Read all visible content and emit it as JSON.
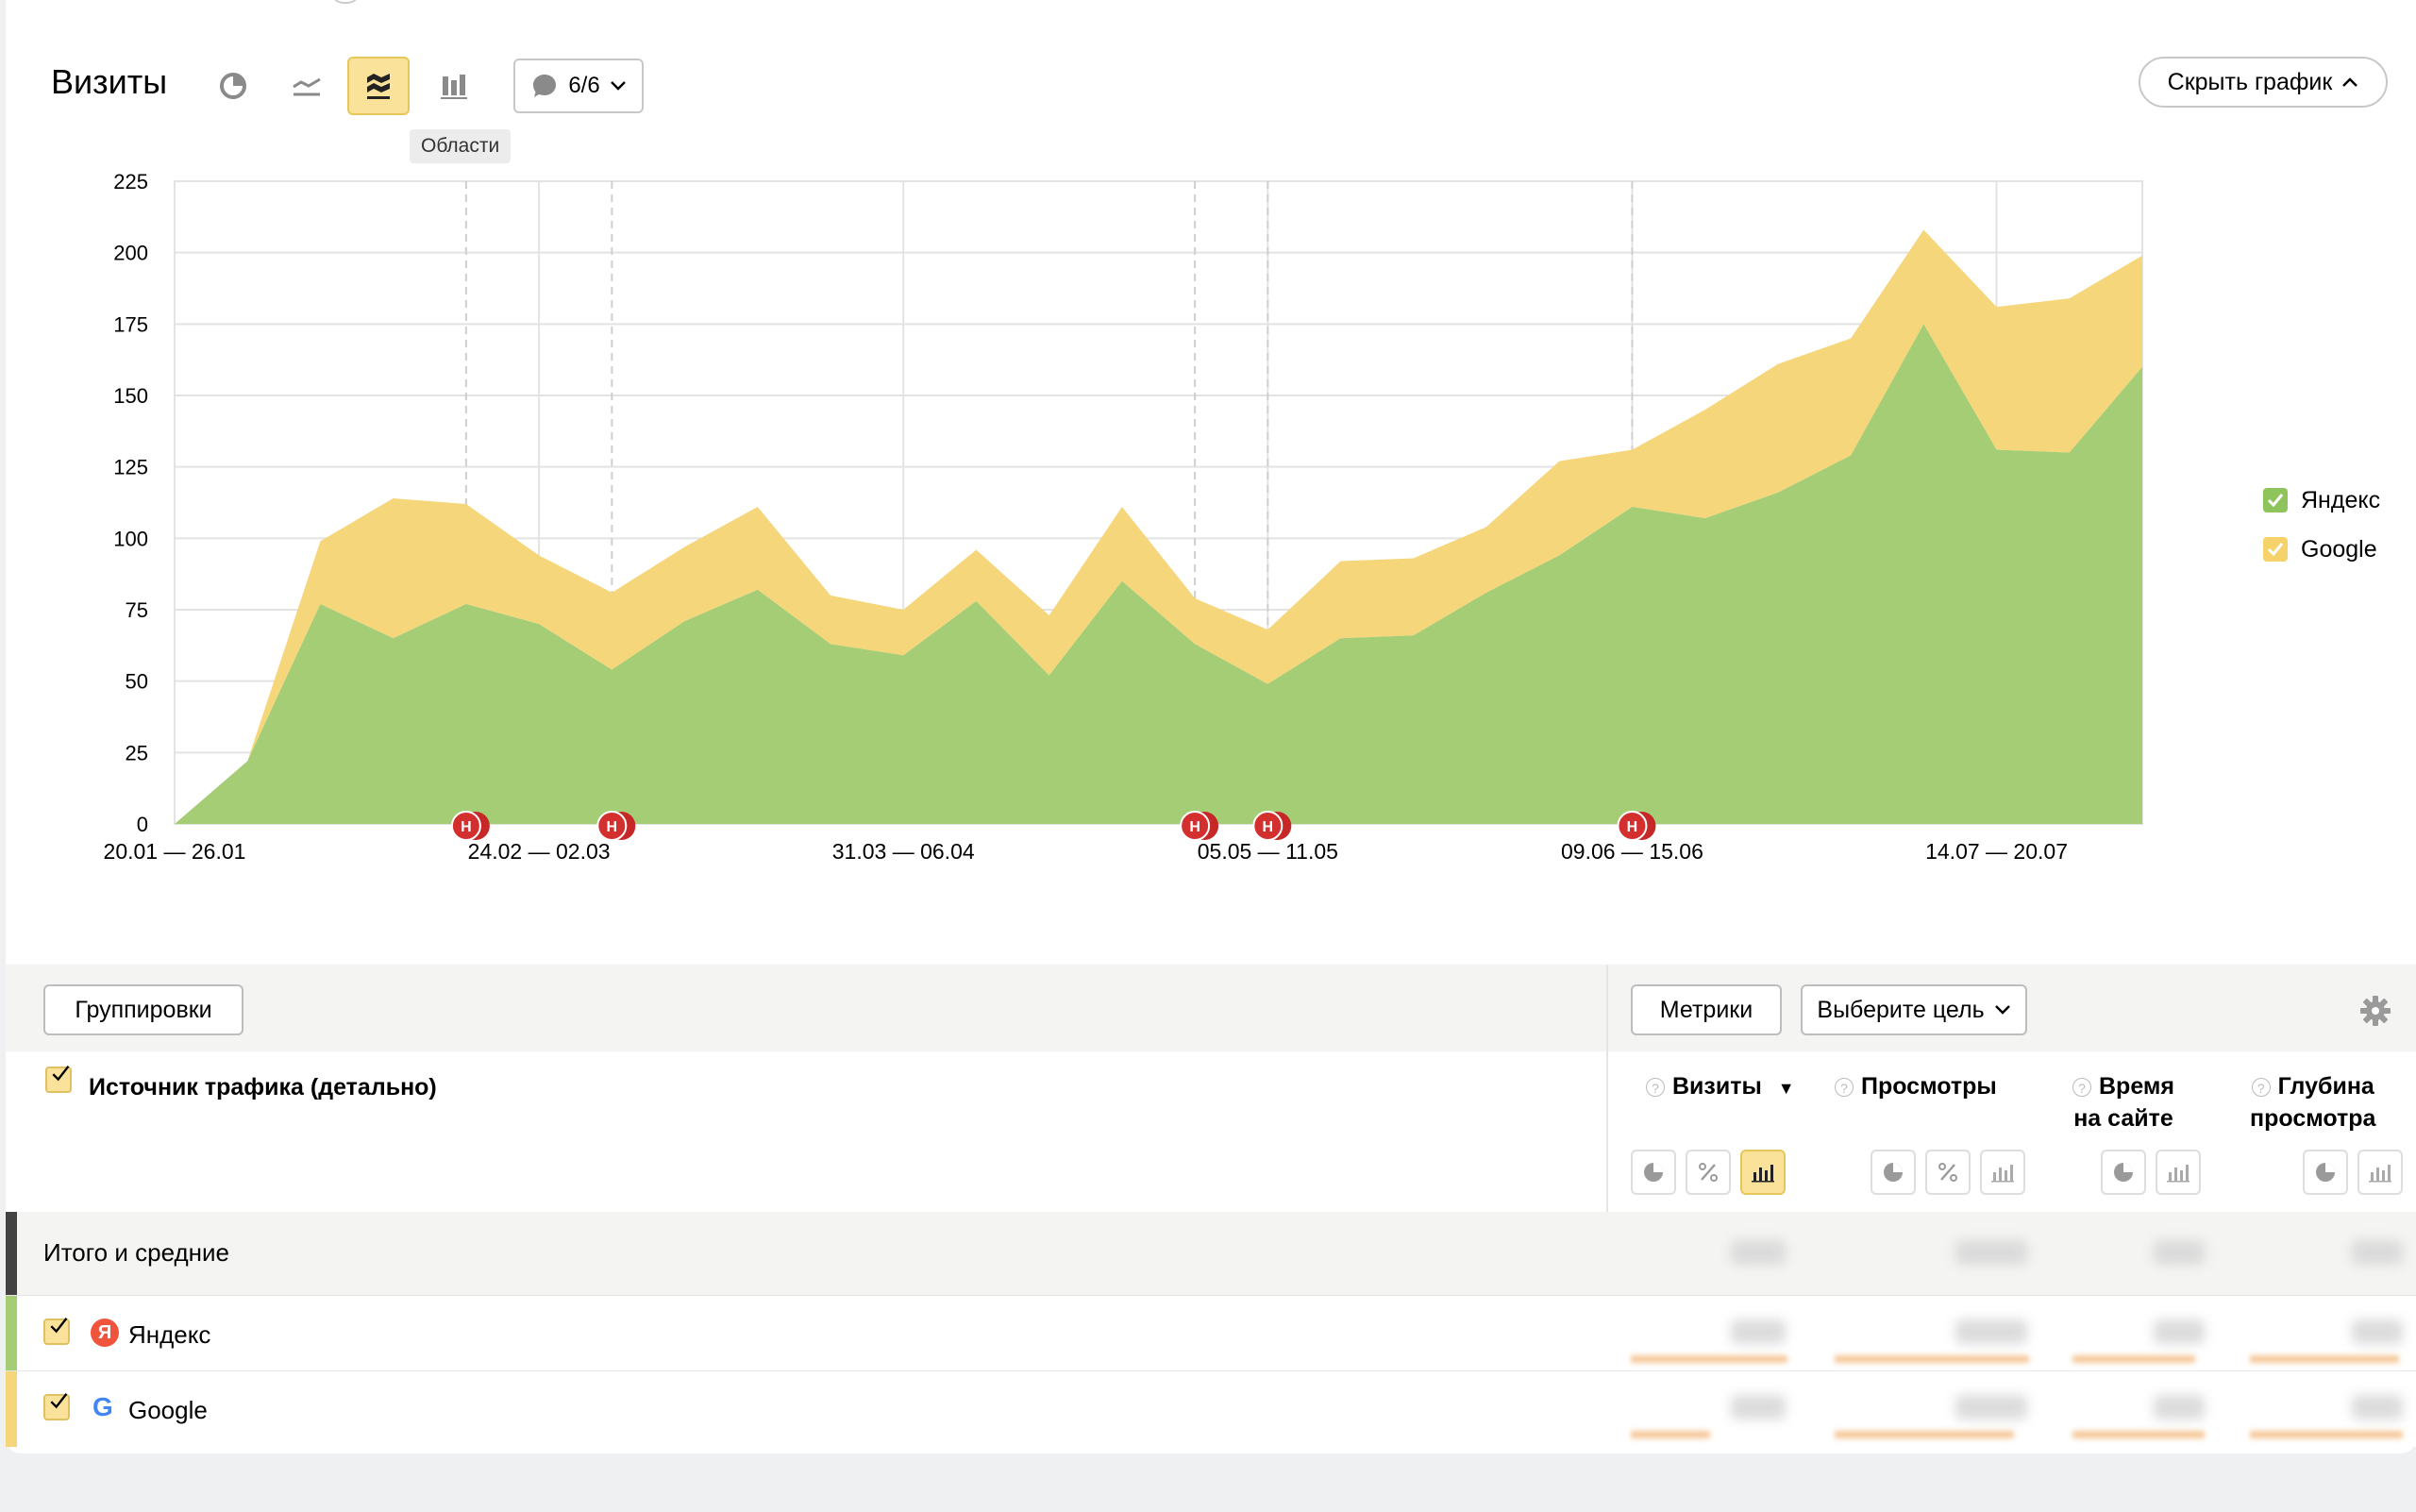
{
  "header": {
    "title": "Визиты",
    "comments_label": "6/6",
    "tooltip": "Области",
    "hide_chart_label": "Скрыть график"
  },
  "legend": [
    {
      "name": "Яндекс",
      "color": "#8fc45c"
    },
    {
      "name": "Google",
      "color": "#f5d36a"
    }
  ],
  "chart_data": {
    "type": "area",
    "stacked": true,
    "ylim": [
      0,
      225
    ],
    "yticks": [
      0,
      25,
      50,
      75,
      100,
      125,
      150,
      175,
      200,
      225
    ],
    "x_labels": [
      {
        "index": 0,
        "label": "20.01 — 26.01"
      },
      {
        "index": 5,
        "label": "24.02 — 02.03"
      },
      {
        "index": 10,
        "label": "31.03 — 06.04"
      },
      {
        "index": 15,
        "label": "05.05 — 11.05"
      },
      {
        "index": 20,
        "label": "09.06 — 15.06"
      },
      {
        "index": 25,
        "label": "14.07 — 20.07"
      }
    ],
    "annotation_points": [
      4,
      6,
      14,
      15,
      20
    ],
    "annotation_label": "Н",
    "series": [
      {
        "name": "Яндекс",
        "color": "#a5cd76",
        "values": [
          0,
          22,
          77,
          65,
          77,
          70,
          54,
          71,
          82,
          63,
          59,
          78,
          52,
          85,
          63,
          49,
          65,
          66,
          81,
          94,
          111,
          107,
          116,
          129,
          175,
          131,
          130,
          160
        ]
      },
      {
        "name": "Google",
        "color": "#f5d67b",
        "values": [
          0,
          0,
          22,
          49,
          35,
          24,
          27,
          26,
          29,
          17,
          16,
          18,
          21,
          26,
          16,
          19,
          27,
          27,
          23,
          33,
          20,
          38,
          45,
          41,
          33,
          50,
          54,
          39
        ]
      }
    ]
  },
  "table_toolbar": {
    "groupings": "Группировки",
    "metrics": "Метрики",
    "goal": "Выберите цель"
  },
  "columns": {
    "dimension": "Источник трафика (детально)",
    "visits": "Визиты",
    "sort_marker": "▼",
    "views": "Просмотры",
    "time_line1": "Время",
    "time_line2": "на сайте",
    "depth_line1": "Глубина",
    "depth_line2": "просмотра"
  },
  "rows": {
    "total": "Итого и средние",
    "yandex": "Яндекс",
    "google": "Google"
  },
  "icons": {
    "yandex_logo_letter": "Я",
    "google_logo_letter": "G"
  }
}
